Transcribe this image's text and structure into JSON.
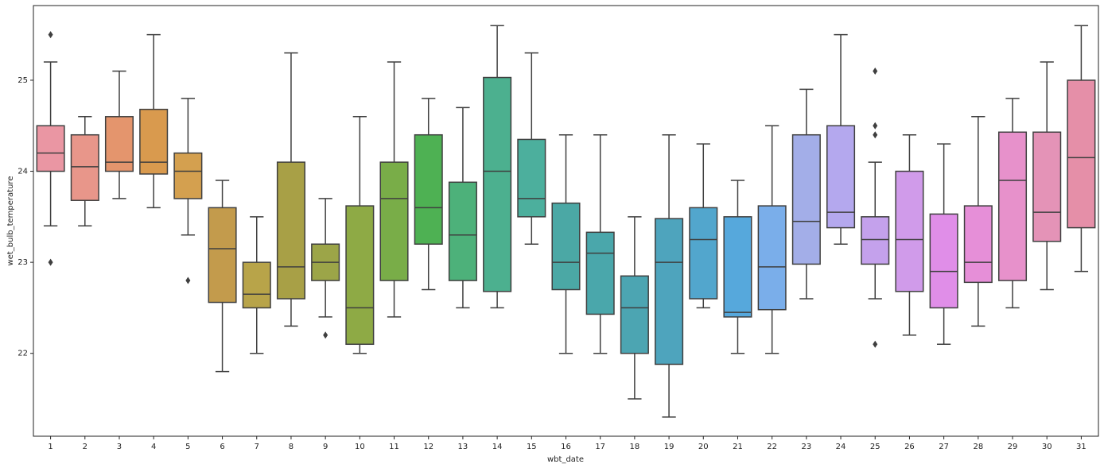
{
  "chart_data": {
    "type": "box",
    "x_label": "wbt_date",
    "y_label": "wet_bulb_temperature",
    "categories": [
      "1",
      "2",
      "3",
      "4",
      "5",
      "6",
      "7",
      "8",
      "9",
      "10",
      "11",
      "12",
      "13",
      "14",
      "15",
      "16",
      "17",
      "18",
      "19",
      "20",
      "21",
      "22",
      "23",
      "24",
      "25",
      "26",
      "27",
      "28",
      "29",
      "30",
      "31"
    ],
    "whislo": [
      23.4,
      23.4,
      23.7,
      23.6,
      23.3,
      21.8,
      22.0,
      22.3,
      22.4,
      22.0,
      22.4,
      22.7,
      22.5,
      22.5,
      23.2,
      22.0,
      22.0,
      21.5,
      21.3,
      22.5,
      22.0,
      22.0,
      22.6,
      23.2,
      22.6,
      22.2,
      22.1,
      22.3,
      22.5,
      22.7,
      22.9
    ],
    "q1": [
      24.0,
      23.68,
      24.0,
      23.97,
      23.7,
      22.56,
      22.5,
      22.6,
      22.8,
      22.1,
      22.8,
      23.2,
      22.8,
      22.68,
      23.5,
      22.7,
      22.43,
      22.0,
      21.88,
      22.6,
      22.4,
      22.48,
      22.98,
      23.38,
      22.98,
      22.68,
      22.5,
      22.78,
      22.8,
      23.23,
      23.38
    ],
    "median": [
      24.2,
      24.05,
      24.1,
      24.1,
      24.0,
      23.15,
      22.65,
      22.95,
      23.0,
      22.5,
      23.7,
      23.6,
      23.3,
      24.0,
      23.7,
      23.0,
      23.1,
      22.5,
      23.0,
      23.25,
      22.45,
      22.95,
      23.45,
      23.55,
      23.25,
      23.25,
      22.9,
      23.0,
      23.9,
      23.55,
      24.15
    ],
    "q3": [
      24.5,
      24.4,
      24.6,
      24.68,
      24.2,
      23.6,
      23.0,
      24.1,
      23.2,
      23.62,
      24.1,
      24.4,
      23.88,
      25.03,
      24.35,
      23.65,
      23.33,
      22.85,
      23.48,
      23.6,
      23.5,
      23.62,
      24.4,
      24.5,
      23.5,
      24.0,
      23.53,
      23.62,
      24.43,
      24.43,
      25.0
    ],
    "whishi": [
      25.2,
      24.6,
      25.1,
      25.5,
      24.8,
      23.9,
      23.5,
      25.3,
      23.7,
      24.6,
      25.2,
      24.8,
      24.7,
      25.6,
      25.3,
      24.4,
      24.4,
      23.5,
      24.4,
      24.3,
      23.9,
      24.5,
      24.9,
      25.5,
      24.1,
      24.4,
      24.3,
      24.6,
      24.8,
      25.2,
      25.6
    ],
    "fliers": [
      [
        25.5,
        23.0
      ],
      [],
      [],
      [],
      [
        22.8
      ],
      [],
      [],
      [],
      [
        22.2
      ],
      [],
      [],
      [],
      [],
      [],
      [],
      [],
      [],
      [],
      [],
      [],
      [],
      [],
      [],
      [],
      [
        25.1,
        24.5,
        24.4,
        22.1
      ],
      [],
      [],
      [],
      [],
      [],
      []
    ],
    "colors": [
      "#ea96a3",
      "#e8968a",
      "#e4956d",
      "#d99a4e",
      "#d4a04f",
      "#c39b4c",
      "#b8a449",
      "#a8a046",
      "#9ca548",
      "#8eaa45",
      "#79ad48",
      "#4eb153",
      "#4db17a",
      "#4cb08f",
      "#4caf9d",
      "#4ba8a5",
      "#4aa7ab",
      "#4ca5b2",
      "#4ea4bd",
      "#52a6cd",
      "#56a8dc",
      "#7aaeea",
      "#a3aee8",
      "#b4a8ee",
      "#c4a1ec",
      "#d09bea",
      "#e08ee8",
      "#e68fd8",
      "#e791cb",
      "#e493b7",
      "#e58fa8"
    ],
    "ylim": [
      21.09,
      25.82
    ],
    "yticks": [
      22,
      23,
      24,
      25
    ],
    "grid": false
  }
}
